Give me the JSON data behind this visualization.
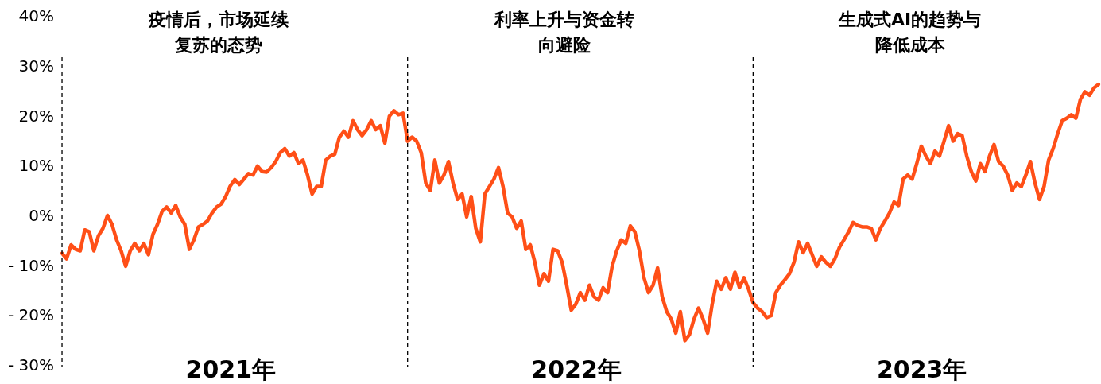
{
  "chart_data": {
    "type": "line",
    "annotations": [
      "疫情后，市场延续复苏的态势",
      "利率上升与资金转向避险",
      "生成式AI的趋势与降低成本",
      "2021年",
      "2022年",
      "2023年"
    ],
    "categories": [
      null,
      null,
      null,
      null,
      null,
      null,
      null,
      null,
      null,
      null,
      null,
      null,
      null,
      null,
      null,
      null,
      null,
      null,
      null,
      null,
      null,
      null,
      null,
      null,
      null,
      null,
      null,
      null,
      null,
      null,
      null,
      null,
      null,
      null,
      null,
      null,
      null,
      null,
      null,
      null,
      null,
      null,
      null,
      null,
      null,
      null,
      null,
      null,
      null,
      null,
      null,
      null,
      null,
      null,
      null,
      null,
      null,
      null,
      null,
      null,
      null,
      null,
      null,
      null,
      null,
      null,
      null,
      null,
      null,
      null,
      null,
      null,
      null,
      null,
      null,
      null,
      null,
      null,
      null,
      null,
      null,
      null,
      null,
      null,
      null,
      null,
      null,
      null,
      null,
      null,
      null,
      null,
      null,
      null,
      null,
      null,
      null,
      null,
      null,
      null,
      null,
      null,
      null,
      null,
      null,
      null,
      null,
      null,
      null,
      null,
      null,
      null,
      null,
      null,
      null,
      null,
      null,
      null,
      null,
      null,
      null,
      null,
      null,
      null,
      null,
      null,
      null,
      null,
      null,
      null,
      null,
      null,
      null,
      null,
      null,
      null,
      null,
      null,
      null,
      null,
      null,
      null,
      null,
      null,
      null,
      null,
      null,
      null,
      null,
      null,
      null,
      null,
      null,
      null,
      null,
      null,
      null,
      null,
      null,
      null,
      null,
      null,
      null,
      null,
      null,
      null,
      null,
      null,
      null,
      null,
      null,
      null,
      null,
      null,
      null,
      null,
      null,
      null,
      null,
      null,
      null,
      null,
      null,
      null,
      null,
      null,
      null,
      null,
      null,
      null,
      null,
      null,
      null,
      null,
      null,
      null,
      null,
      null,
      null,
      null,
      null,
      null,
      null,
      null,
      null,
      null,
      null,
      null,
      null,
      null,
      null,
      null,
      null,
      null,
      null,
      null,
      null,
      null,
      null,
      null,
      null,
      null,
      null,
      null,
      null,
      null,
      null,
      null,
      null
    ],
    "series": [
      {
        "color": "#ff4f17",
        "values": [
          -7.3,
          -8.4,
          -5.6,
          -6.5,
          -6.8,
          -2.6,
          -3,
          -6.8,
          -3.8,
          -2.3,
          0.3,
          -1.5,
          -4.6,
          -6.8,
          -9.9,
          -6.8,
          -5.3,
          -6.8,
          -5.3,
          -7.6,
          -3.5,
          -1.5,
          1.1,
          2,
          0.8,
          2.3,
          0,
          -1.5,
          -6.5,
          -4.6,
          -2,
          -1.5,
          -0.8,
          0.8,
          2,
          2.6,
          4.1,
          6.2,
          7.5,
          6.5,
          7.6,
          8.7,
          8.4,
          10.2,
          9.1,
          9,
          9.9,
          11.1,
          12.9,
          13.7,
          12.2,
          12.9,
          10.7,
          11.4,
          8.4,
          4.6,
          6.1,
          6.1,
          11.4,
          12.2,
          12.6,
          16,
          17.2,
          16,
          19.3,
          17.5,
          16.3,
          17.5,
          19.3,
          17.5,
          18.3,
          14.8,
          20.2,
          21.3,
          20.5,
          20.8,
          15.2,
          16,
          15.2,
          12.9,
          6.8,
          5.3,
          11.4,
          6.8,
          8.4,
          11.1,
          6.8,
          3.5,
          4.6,
          0,
          4.1,
          -2.3,
          -5,
          4.6,
          6.1,
          7.6,
          9.9,
          6.1,
          0.8,
          0,
          -2.3,
          -0.8,
          -6.5,
          -5.6,
          -9.1,
          -13.7,
          -11.4,
          -12.9,
          -6.5,
          -6.8,
          -9.1,
          -13.7,
          -18.7,
          -17.5,
          -15.2,
          -16.7,
          -13.7,
          -16,
          -16.7,
          -14.2,
          -15.2,
          -9.9,
          -6.8,
          -4.6,
          -5.3,
          -1.8,
          -3,
          -6.8,
          -12.2,
          -15.2,
          -13.7,
          -10.2,
          -16,
          -19,
          -20.5,
          -23.3,
          -19,
          -24.8,
          -23.6,
          -20.5,
          -18.3,
          -20.5,
          -23.3,
          -17.5,
          -12.9,
          -14.5,
          -12.2,
          -14.5,
          -11.1,
          -14.2,
          -12.2,
          -14.5,
          -17.2,
          -18.3,
          -19,
          -20.2,
          -19.8,
          -15.2,
          -13.7,
          -12.6,
          -11.4,
          -9.1,
          -5,
          -7.2,
          -5.3,
          -7.6,
          -9.9,
          -8,
          -9.1,
          -9.9,
          -8.4,
          -6.1,
          -4.6,
          -3,
          -1.1,
          -1.7,
          -2,
          -2,
          -2.3,
          -4.6,
          -2.3,
          -0.8,
          0.8,
          3,
          2.3,
          7.6,
          8.4,
          7.6,
          10.7,
          14.2,
          12.2,
          10.7,
          13.2,
          12.2,
          15.2,
          18.3,
          15.2,
          16.7,
          16.3,
          12.2,
          9.1,
          7.2,
          10.7,
          9.1,
          12.2,
          14.5,
          11.1,
          10.2,
          8.4,
          5.3,
          6.8,
          6.1,
          8.4,
          11.1,
          6.8,
          3.5,
          6.1,
          11.4,
          13.7,
          16.7,
          19.3,
          19.8,
          20.5,
          19.8,
          23.6,
          25.1,
          24.4,
          25.9,
          26.6
        ]
      }
    ],
    "ylim": [
      -30,
      40
    ],
    "yticks": [
      {
        "value": 40,
        "label": "40%"
      },
      {
        "value": 30,
        "label": "30%"
      },
      {
        "value": 20,
        "label": "20%"
      },
      {
        "value": 10,
        "label": "10%"
      },
      {
        "value": 0,
        "label": "0%"
      },
      {
        "value": -10,
        "label": "- 10%"
      },
      {
        "value": -20,
        "label": "- 20%"
      },
      {
        "value": -30,
        "label": "- 30%"
      }
    ],
    "tick_labels": "y",
    "marker": "none",
    "line_style": "solid"
  }
}
